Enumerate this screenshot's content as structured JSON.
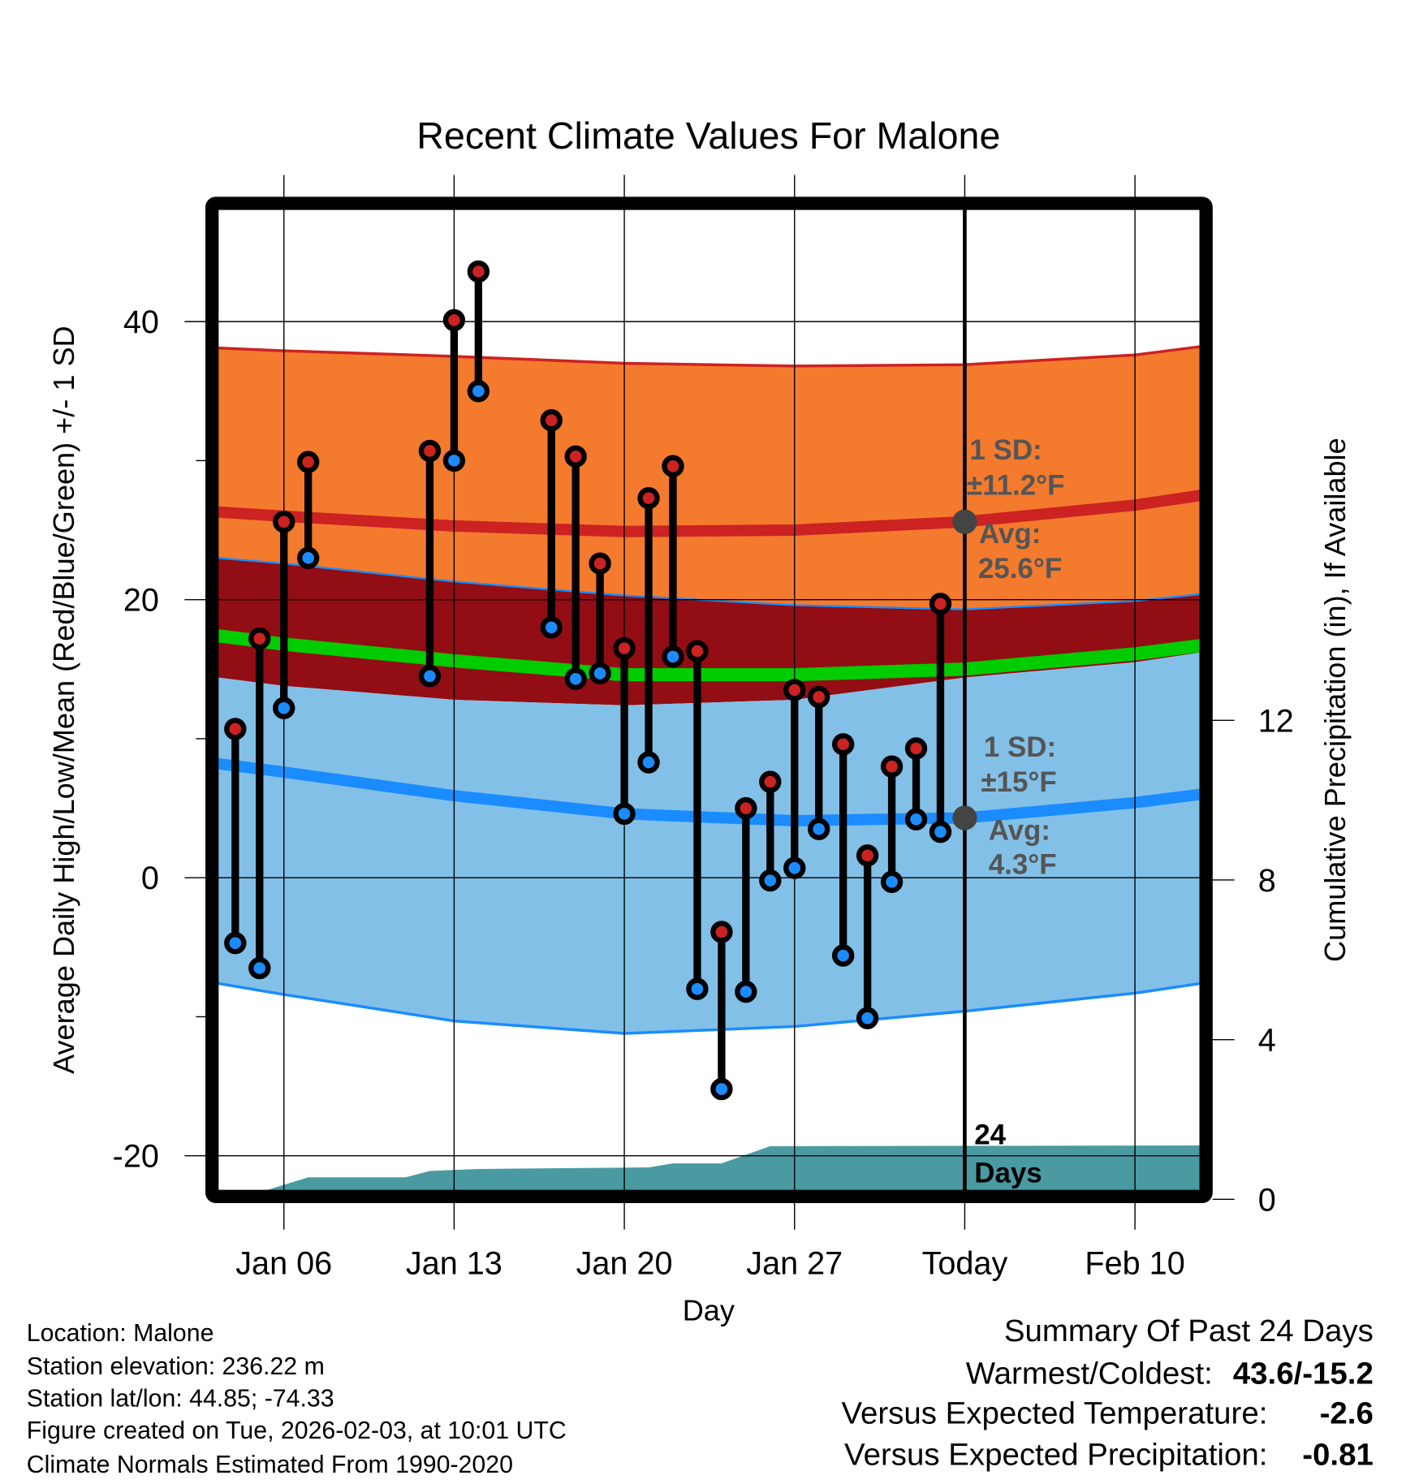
{
  "chart_data": {
    "type": "line",
    "title": "Recent Climate Values For Malone",
    "xlabel": "Day",
    "ylabel": "Average Daily High/Low/Mean (Red/Blue/Green) +/- 1 SD",
    "y2label": "Cumulative Precipitation (in), If Available",
    "ylim": [
      -22.5,
      48
    ],
    "y2lim": [
      0,
      12
    ],
    "grid": true,
    "x_ticks": [
      {
        "day": 6,
        "label": "Jan 06"
      },
      {
        "day": 13,
        "label": "Jan 13"
      },
      {
        "day": 20,
        "label": "Jan 20"
      },
      {
        "day": 27,
        "label": "Jan 27"
      },
      {
        "day": 34,
        "label": "Today"
      },
      {
        "day": 41,
        "label": "Feb 10"
      }
    ],
    "y_ticks": [
      40,
      20,
      0,
      -20
    ],
    "y_minor_ticks": [
      30,
      10,
      -10
    ],
    "y2_ticks": [
      0,
      4,
      8,
      12
    ],
    "xlim_days": [
      3.3,
      43.7
    ],
    "today_day": 34,
    "normals": {
      "days": [
        3.3,
        6,
        13,
        20,
        27,
        34,
        41,
        43.7
      ],
      "high_plus_sd": [
        38.1,
        37.9,
        37.5,
        37.0,
        36.8,
        36.9,
        37.6,
        38.2
      ],
      "high_mean": [
        26.3,
        26.0,
        25.3,
        24.9,
        25.0,
        25.6,
        26.8,
        27.5
      ],
      "high_minus_sd": [
        23.0,
        22.6,
        21.3,
        20.3,
        19.6,
        19.3,
        19.9,
        20.4
      ],
      "mean": [
        17.4,
        16.8,
        15.6,
        14.6,
        14.6,
        15.0,
        16.1,
        16.7
      ],
      "low_plus_sd": [
        14.4,
        13.8,
        12.8,
        12.4,
        12.8,
        14.4,
        15.5,
        16.2
      ],
      "low_mean": [
        8.2,
        7.6,
        5.9,
        4.6,
        4.1,
        4.3,
        5.4,
        6.0
      ],
      "low_minus_sd": [
        -7.6,
        -8.4,
        -10.3,
        -11.2,
        -10.7,
        -9.6,
        -8.3,
        -7.6
      ]
    },
    "observed": {
      "days": [
        4,
        5,
        6,
        7,
        12,
        13,
        14,
        17,
        18,
        19,
        20,
        21,
        22,
        23,
        24,
        25,
        26,
        27,
        28,
        29,
        30,
        31,
        32,
        33
      ],
      "high": [
        10.7,
        17.2,
        25.6,
        29.9,
        30.7,
        40.1,
        43.6,
        32.9,
        30.3,
        22.6,
        16.5,
        27.3,
        29.6,
        16.3,
        -3.9,
        5.0,
        6.9,
        13.5,
        13.0,
        9.6,
        1.6,
        8.0,
        9.3,
        19.7
      ],
      "low": [
        -4.7,
        -6.5,
        12.2,
        23.0,
        14.5,
        30.0,
        35.0,
        18.0,
        14.3,
        14.7,
        4.6,
        8.3,
        15.9,
        -8.0,
        -15.2,
        -8.2,
        -0.2,
        0.7,
        3.5,
        -5.6,
        -10.1,
        -0.3,
        4.2,
        3.3
      ]
    },
    "precip": {
      "days": [
        5.2,
        7,
        11,
        12,
        14,
        21,
        22,
        24,
        26,
        43.7
      ],
      "values": [
        0.2,
        0.55,
        0.55,
        0.71,
        0.76,
        0.8,
        0.9,
        0.9,
        1.33,
        1.35
      ]
    },
    "annotations": {
      "high_sd": "1 SD:",
      "high_sd_value": "±11.2°F",
      "high_avg": "Avg:",
      "high_avg_value": "25.6°F",
      "low_sd": "1 SD:",
      "low_sd_value": "±15°F",
      "low_avg": "Avg:",
      "low_avg_value": "4.3°F",
      "days_count": "24",
      "days_word": "Days"
    },
    "colors": {
      "high_band": "#f47a2e",
      "high_line": "#cc2222",
      "mean_band": "#930d14",
      "mean_line": "#00cc00",
      "low_band": "#83c0e7",
      "low_line": "#1a8cff",
      "precip": "#4a9aa2",
      "high_dot": "#cc2222",
      "low_dot": "#1a8cff"
    }
  },
  "footer": {
    "location": "Location: Malone",
    "elevation": "Station elevation: 236.22 m",
    "latlon": "Station lat/lon: 44.85; -74.33",
    "created": "Figure created on Tue, 2026-02-03, at 10:01 UTC",
    "normals": "Climate Normals Estimated From 1990-2020"
  },
  "summary": {
    "title": "Summary Of Past 24 Days",
    "warmest_label": "Warmest/Coldest:",
    "warmest_value": "43.6/-15.2",
    "temp_label": "Versus Expected Temperature:",
    "temp_value": "-2.6",
    "temp_color": "#1a8cff",
    "precip_label": "Versus Expected Precipitation:",
    "precip_value": "-0.81",
    "precip_color": "#a0522d"
  }
}
